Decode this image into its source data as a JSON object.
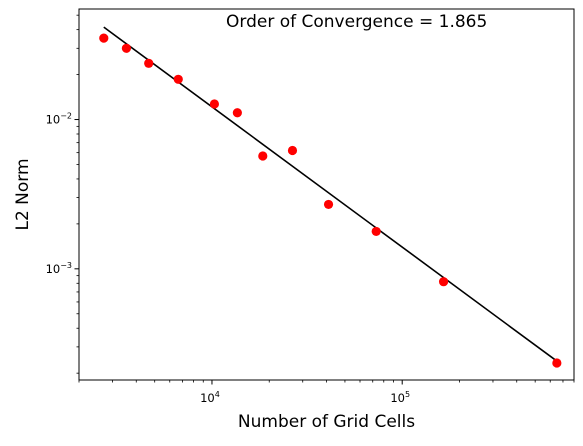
{
  "chart_data": {
    "type": "scatter",
    "title": "",
    "annotation": "Order of Convergence = 1.865",
    "xlabel": "Number of Grid Cells",
    "ylabel": "L2 Norm",
    "xscale": "log",
    "yscale": "log",
    "xlim": [
      2000,
      800000
    ],
    "ylim": [
      0.00018,
      0.055
    ],
    "grid": false,
    "legend": "none",
    "colors": {
      "points": "#ff0000",
      "fit_line": "#000000",
      "axes": "#000000"
    },
    "x_major_ticks": [
      {
        "value": 10000,
        "base": "10",
        "exp": "4"
      },
      {
        "value": 100000,
        "base": "10",
        "exp": "5"
      }
    ],
    "y_major_ticks": [
      {
        "value": 0.001,
        "base": "10",
        "exp": "−3"
      },
      {
        "value": 0.01,
        "base": "10",
        "exp": "−2"
      }
    ],
    "series": [
      {
        "kind": "points",
        "x": [
          2700,
          3550,
          4650,
          6650,
          10300,
          13600,
          18500,
          26500,
          41000,
          73000,
          165000,
          650000
        ],
        "y": [
          0.0351,
          0.03,
          0.0238,
          0.0186,
          0.0127,
          0.0111,
          0.0057,
          0.0062,
          0.0027,
          0.00178,
          0.00082,
          0.000234
        ]
      },
      {
        "kind": "fit-line",
        "x": [
          2700,
          650000
        ],
        "y": [
          0.0416,
          0.000241
        ]
      }
    ]
  }
}
